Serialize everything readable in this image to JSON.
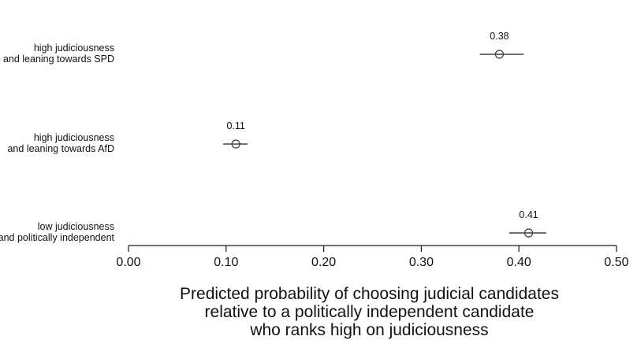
{
  "chart_data": {
    "type": "scatter",
    "subtype": "point-estimate-with-intervals",
    "categories": [
      {
        "line1": "high judiciousness",
        "line2": "and leaning towards SPD",
        "estimate": 0.38,
        "label": "0.38",
        "ci": [
          0.36,
          0.405
        ]
      },
      {
        "line1": "high judiciousness",
        "line2": "and leaning towards AfD",
        "estimate": 0.11,
        "label": "0.11",
        "ci": [
          0.097,
          0.122
        ]
      },
      {
        "line1": "low judiciousness",
        "line2": "and politically independent",
        "estimate": 0.41,
        "label": "0.41",
        "ci": [
          0.39,
          0.428
        ]
      }
    ],
    "xlim": [
      0.0,
      0.5
    ],
    "xticks": [
      0.0,
      0.1,
      0.2,
      0.3,
      0.4,
      0.5
    ],
    "xtick_labels": [
      "0.00",
      "0.10",
      "0.20",
      "0.30",
      "0.40",
      "0.50"
    ],
    "xlabel_lines": [
      "Predicted probability of choosing judicial candidates",
      "relative to a politically independent candidate",
      "who ranks high on judiciousness"
    ],
    "grid": false,
    "marker": "open-circle",
    "colors": {
      "marker": "#2b3e50",
      "line": "#1a1a1a",
      "text": "#111111"
    }
  }
}
